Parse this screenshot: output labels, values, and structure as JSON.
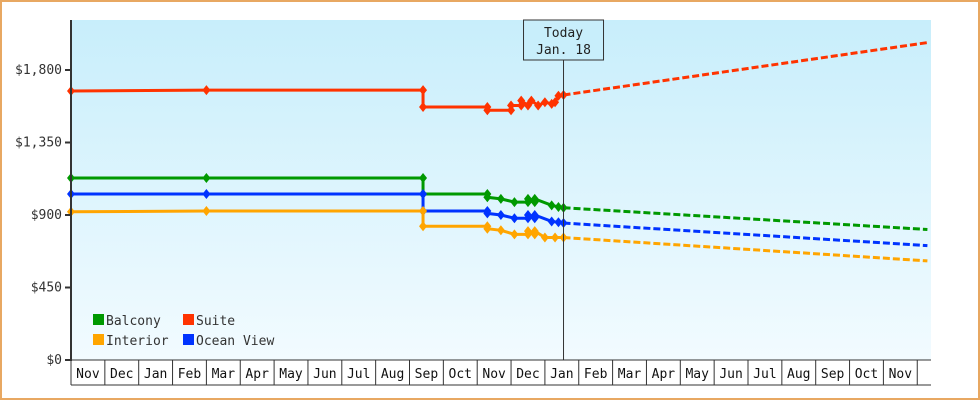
{
  "chart_data": {
    "type": "line",
    "title": "",
    "xlabel": "",
    "ylabel": "",
    "ylim": [
      0,
      2100
    ],
    "yticks": [
      {
        "value": 0,
        "label": "$0"
      },
      {
        "value": 450,
        "label": "$450"
      },
      {
        "value": 900,
        "label": "$900"
      },
      {
        "value": 1350,
        "label": "$1,350"
      },
      {
        "value": 1800,
        "label": "$1,800"
      }
    ],
    "months": [
      "Nov",
      "Dec",
      "Jan",
      "Feb",
      "Mar",
      "Apr",
      "May",
      "Jun",
      "Jul",
      "Aug",
      "Sep",
      "Oct",
      "Nov",
      "Dec",
      "Jan",
      "Feb",
      "Mar",
      "Apr",
      "May",
      "Jun",
      "Jul",
      "Aug",
      "Sep",
      "Oct",
      "Nov"
    ],
    "today_marker": {
      "line1": "Today",
      "line2": "Jan. 18",
      "month_index": 14.55
    },
    "legend": [
      {
        "name": "Balcony",
        "color": "#009900"
      },
      {
        "name": "Suite",
        "color": "#ff3300"
      },
      {
        "name": "Interior",
        "color": "#ffa500"
      },
      {
        "name": "Ocean View",
        "color": "#0033ff"
      }
    ],
    "series": [
      {
        "name": "Suite",
        "color": "#ff3300",
        "points": [
          [
            0,
            1670
          ],
          [
            4,
            1675
          ],
          [
            10.4,
            1675
          ],
          [
            10.4,
            1570
          ],
          [
            12.3,
            1570
          ],
          [
            12.3,
            1550
          ],
          [
            13.0,
            1550
          ],
          [
            13.0,
            1580
          ],
          [
            13.3,
            1580
          ],
          [
            13.3,
            1610
          ],
          [
            13.5,
            1580
          ],
          [
            13.6,
            1610
          ],
          [
            13.8,
            1580
          ],
          [
            14.0,
            1600
          ],
          [
            14.2,
            1590
          ],
          [
            14.3,
            1600
          ],
          [
            14.4,
            1640
          ],
          [
            14.55,
            1645
          ]
        ],
        "projection": [
          [
            14.55,
            1645
          ],
          [
            25.3,
            1970
          ]
        ]
      },
      {
        "name": "Balcony",
        "color": "#009900",
        "points": [
          [
            0,
            1130
          ],
          [
            4,
            1130
          ],
          [
            10.4,
            1130
          ],
          [
            10.4,
            1030
          ],
          [
            12.3,
            1030
          ],
          [
            12.3,
            1010
          ],
          [
            12.7,
            1000
          ],
          [
            13.1,
            980
          ],
          [
            13.5,
            980
          ],
          [
            13.5,
            1000
          ],
          [
            13.7,
            980
          ],
          [
            13.7,
            1000
          ],
          [
            14.2,
            960
          ],
          [
            14.4,
            950
          ],
          [
            14.55,
            945
          ]
        ],
        "projection": [
          [
            14.55,
            945
          ],
          [
            25.3,
            810
          ]
        ]
      },
      {
        "name": "Ocean View",
        "color": "#0033ff",
        "points": [
          [
            0,
            1030
          ],
          [
            4,
            1030
          ],
          [
            10.4,
            1030
          ],
          [
            10.4,
            925
          ],
          [
            12.3,
            925
          ],
          [
            12.3,
            910
          ],
          [
            12.7,
            900
          ],
          [
            13.1,
            880
          ],
          [
            13.5,
            880
          ],
          [
            13.5,
            900
          ],
          [
            13.7,
            880
          ],
          [
            13.7,
            900
          ],
          [
            14.2,
            860
          ],
          [
            14.4,
            855
          ],
          [
            14.55,
            850
          ]
        ],
        "projection": [
          [
            14.55,
            850
          ],
          [
            25.3,
            710
          ]
        ]
      },
      {
        "name": "Interior",
        "color": "#ffa500",
        "points": [
          [
            0,
            920
          ],
          [
            4,
            925
          ],
          [
            10.4,
            925
          ],
          [
            10.4,
            830
          ],
          [
            12.3,
            830
          ],
          [
            12.3,
            815
          ],
          [
            12.7,
            805
          ],
          [
            13.1,
            780
          ],
          [
            13.5,
            780
          ],
          [
            13.5,
            800
          ],
          [
            13.7,
            780
          ],
          [
            13.7,
            800
          ],
          [
            14.0,
            760
          ],
          [
            14.3,
            760
          ],
          [
            14.55,
            760
          ]
        ],
        "projection": [
          [
            14.55,
            760
          ],
          [
            25.3,
            615
          ]
        ]
      }
    ]
  }
}
